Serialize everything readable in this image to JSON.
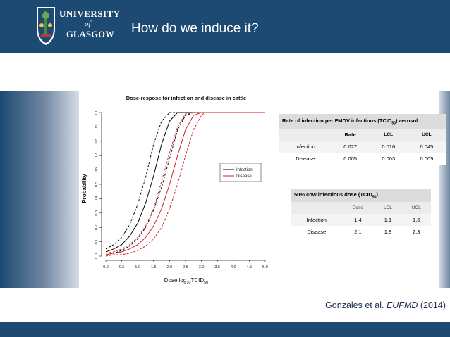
{
  "logo": {
    "line1": "UNIVERSITY",
    "line2": "of",
    "line3": "GLASGOW"
  },
  "title": "How do we induce it?",
  "chart_data": {
    "type": "line",
    "title": "Dose-respose for infection and disease in cattle",
    "xlabel": "Dose log10TCID50",
    "ylabel": "Probability",
    "xlim": [
      0,
      5
    ],
    "ylim": [
      0,
      1
    ],
    "xticks": [
      "0.0",
      "0.5",
      "1.0",
      "1.5",
      "2.0",
      "2.5",
      "3.0",
      "3.5",
      "4.0",
      "4.5",
      "5.0"
    ],
    "yticks": [
      "0.0",
      "0.1",
      "0.2",
      "0.3",
      "0.4",
      "0.5",
      "0.6",
      "0.7",
      "0.8",
      "0.9",
      "1.0"
    ],
    "legend_position": "right",
    "colors": {
      "infection": "#000000",
      "disease": "#cc2222"
    },
    "series": [
      {
        "name": "Infection",
        "style": "solid",
        "color": "#000000",
        "x": [
          0,
          0.25,
          0.5,
          0.75,
          1,
          1.25,
          1.5,
          1.75,
          2,
          2.25,
          2.5,
          5
        ],
        "y": [
          0.03,
          0.05,
          0.08,
          0.14,
          0.23,
          0.37,
          0.56,
          0.78,
          0.94,
          1.0,
          1.0,
          1.0
        ]
      },
      {
        "name": "Infection LCL",
        "style": "dashed",
        "color": "#000000",
        "x": [
          0,
          0.25,
          0.5,
          0.75,
          1,
          1.25,
          1.5,
          1.75,
          2,
          5
        ],
        "y": [
          0.05,
          0.08,
          0.13,
          0.22,
          0.36,
          0.55,
          0.78,
          0.94,
          1.0,
          1.0
        ]
      },
      {
        "name": "Infection UCL",
        "style": "dashed",
        "color": "#000000",
        "x": [
          0,
          0.25,
          0.5,
          0.75,
          1,
          1.25,
          1.5,
          1.75,
          2,
          2.25,
          2.5,
          2.75,
          5
        ],
        "y": [
          0.01,
          0.02,
          0.04,
          0.07,
          0.12,
          0.2,
          0.32,
          0.48,
          0.68,
          0.88,
          0.98,
          1.0,
          1.0
        ]
      },
      {
        "name": "Disease",
        "style": "solid",
        "color": "#cc2222",
        "x": [
          0,
          0.25,
          0.5,
          0.75,
          1,
          1.25,
          1.5,
          1.75,
          2,
          2.25,
          2.5,
          2.75,
          3,
          5
        ],
        "y": [
          0.01,
          0.02,
          0.03,
          0.05,
          0.08,
          0.13,
          0.21,
          0.33,
          0.5,
          0.7,
          0.88,
          0.98,
          1.0,
          1.0
        ]
      },
      {
        "name": "Disease LCL",
        "style": "dashed",
        "color": "#cc2222",
        "x": [
          0,
          0.25,
          0.5,
          0.75,
          1,
          1.25,
          1.5,
          1.75,
          2,
          2.25,
          2.5,
          2.75,
          5
        ],
        "y": [
          0.02,
          0.03,
          0.05,
          0.08,
          0.13,
          0.21,
          0.33,
          0.52,
          0.72,
          0.9,
          0.99,
          1.0,
          1.0
        ]
      },
      {
        "name": "Disease UCL",
        "style": "dashed",
        "color": "#cc2222",
        "x": [
          0,
          0.25,
          0.5,
          0.75,
          1,
          1.25,
          1.5,
          1.75,
          2,
          2.25,
          2.5,
          2.75,
          3,
          3.1,
          5
        ],
        "y": [
          0.0,
          0.01,
          0.01,
          0.02,
          0.04,
          0.07,
          0.12,
          0.2,
          0.33,
          0.5,
          0.7,
          0.88,
          0.98,
          1.0,
          1.0
        ]
      }
    ],
    "legend": [
      {
        "label": "Infection",
        "color": "#000000"
      },
      {
        "label": "Disease",
        "color": "#cc2222"
      }
    ]
  },
  "rate_table": {
    "caption": "Rate of infection per  FMDV infectious (TCID",
    "caption_sub": "50",
    "caption_end": ") aerosol",
    "headers": [
      "",
      "Rate",
      "LCL",
      "UCL"
    ],
    "rows": [
      [
        "Infection",
        "0.027",
        "0.016",
        "0.045"
      ],
      [
        "Disease",
        "0.005",
        "0.003",
        "0.009"
      ]
    ]
  },
  "dose_table": {
    "caption": "50% cow infectious dose (TCID",
    "caption_sub": "50",
    "caption_end": ")",
    "headers": [
      "",
      "Dose",
      "LCL",
      "UCL"
    ],
    "rows": [
      [
        "Infection",
        "1.4",
        "1.1",
        "1.6"
      ],
      [
        "Disease",
        "2.1",
        "1.8",
        "2.3"
      ]
    ]
  },
  "citation": {
    "authors": "Gonzales et al. ",
    "journal": "EUFMD",
    "year": " (2014)"
  }
}
